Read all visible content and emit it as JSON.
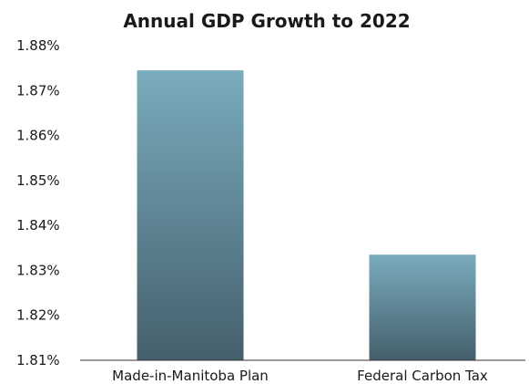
{
  "chart_data": {
    "type": "bar",
    "title": "Annual GDP Growth to 2022",
    "xlabel": "",
    "ylabel": "",
    "categories": [
      "Made-in-Manitoba Plan",
      "Federal Carbon Tax"
    ],
    "values": [
      1.8745,
      1.8335
    ],
    "ylim": [
      1.81,
      1.88
    ],
    "y_ticks": [
      "1.81%",
      "1.82%",
      "1.83%",
      "1.84%",
      "1.85%",
      "1.86%",
      "1.87%",
      "1.88%"
    ],
    "y_tick_values": [
      1.81,
      1.82,
      1.83,
      1.84,
      1.85,
      1.86,
      1.87,
      1.88
    ],
    "grid": false,
    "legend": "none",
    "colors": {
      "bar_top": "#79acbd",
      "bar_bottom": "#455f6c",
      "axis": "#333333",
      "text": "#1a1a1a"
    }
  }
}
